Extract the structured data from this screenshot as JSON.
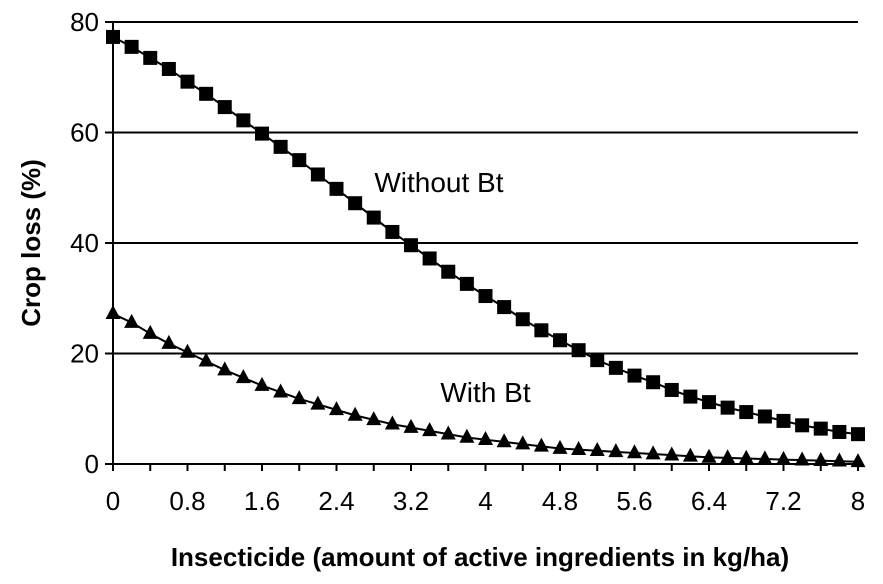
{
  "chart_data": {
    "type": "line",
    "title": "",
    "xlabel": "Insecticide (amount of active ingredients in kg/ha)",
    "ylabel": "Crop loss (%)",
    "xlim": [
      0,
      8
    ],
    "ylim": [
      0,
      80
    ],
    "x_ticks": [
      "0",
      "0.8",
      "1.6",
      "2.4",
      "3.2",
      "4",
      "4.8",
      "5.6",
      "6.4",
      "7.2",
      "8"
    ],
    "y_ticks": [
      "0",
      "20",
      "40",
      "60",
      "80"
    ],
    "grid": "horizontal",
    "x": [
      0,
      0.2,
      0.4,
      0.6,
      0.8,
      1.0,
      1.2,
      1.4,
      1.6,
      1.8,
      2.0,
      2.2,
      2.4,
      2.6,
      2.8,
      3.0,
      3.2,
      3.4,
      3.6,
      3.8,
      4.0,
      4.2,
      4.4,
      4.6,
      4.8,
      5.0,
      5.2,
      5.4,
      5.6,
      5.8,
      6.0,
      6.2,
      6.4,
      6.6,
      6.8,
      7.0,
      7.2,
      7.4,
      7.6,
      7.8,
      8.0
    ],
    "series": [
      {
        "name": "Without Bt",
        "marker": "square",
        "values": [
          77.3,
          75.5,
          73.5,
          71.5,
          69.2,
          67.0,
          64.6,
          62.2,
          59.8,
          57.4,
          55.0,
          52.4,
          49.8,
          47.2,
          44.6,
          42.0,
          39.6,
          37.2,
          34.8,
          32.6,
          30.4,
          28.4,
          26.2,
          24.2,
          22.4,
          20.6,
          18.8,
          17.4,
          16.0,
          14.8,
          13.4,
          12.2,
          11.2,
          10.2,
          9.4,
          8.6,
          7.8,
          7.0,
          6.4,
          5.8,
          5.4
        ]
      },
      {
        "name": "With Bt",
        "marker": "triangle",
        "values": [
          27.2,
          25.6,
          23.6,
          21.8,
          20.2,
          18.6,
          17.0,
          15.6,
          14.2,
          13.0,
          11.8,
          10.8,
          9.8,
          8.8,
          8.0,
          7.2,
          6.6,
          6.0,
          5.4,
          4.8,
          4.4,
          4.0,
          3.6,
          3.2,
          2.8,
          2.6,
          2.4,
          2.2,
          2.0,
          1.8,
          1.6,
          1.4,
          1.2,
          1.1,
          1.0,
          0.9,
          0.8,
          0.7,
          0.6,
          0.5,
          0.4
        ]
      }
    ],
    "annotations": [
      {
        "text": "Without Bt",
        "x": 3.5,
        "y": 51
      },
      {
        "text": "With Bt",
        "x": 4.0,
        "y": 13
      }
    ]
  }
}
